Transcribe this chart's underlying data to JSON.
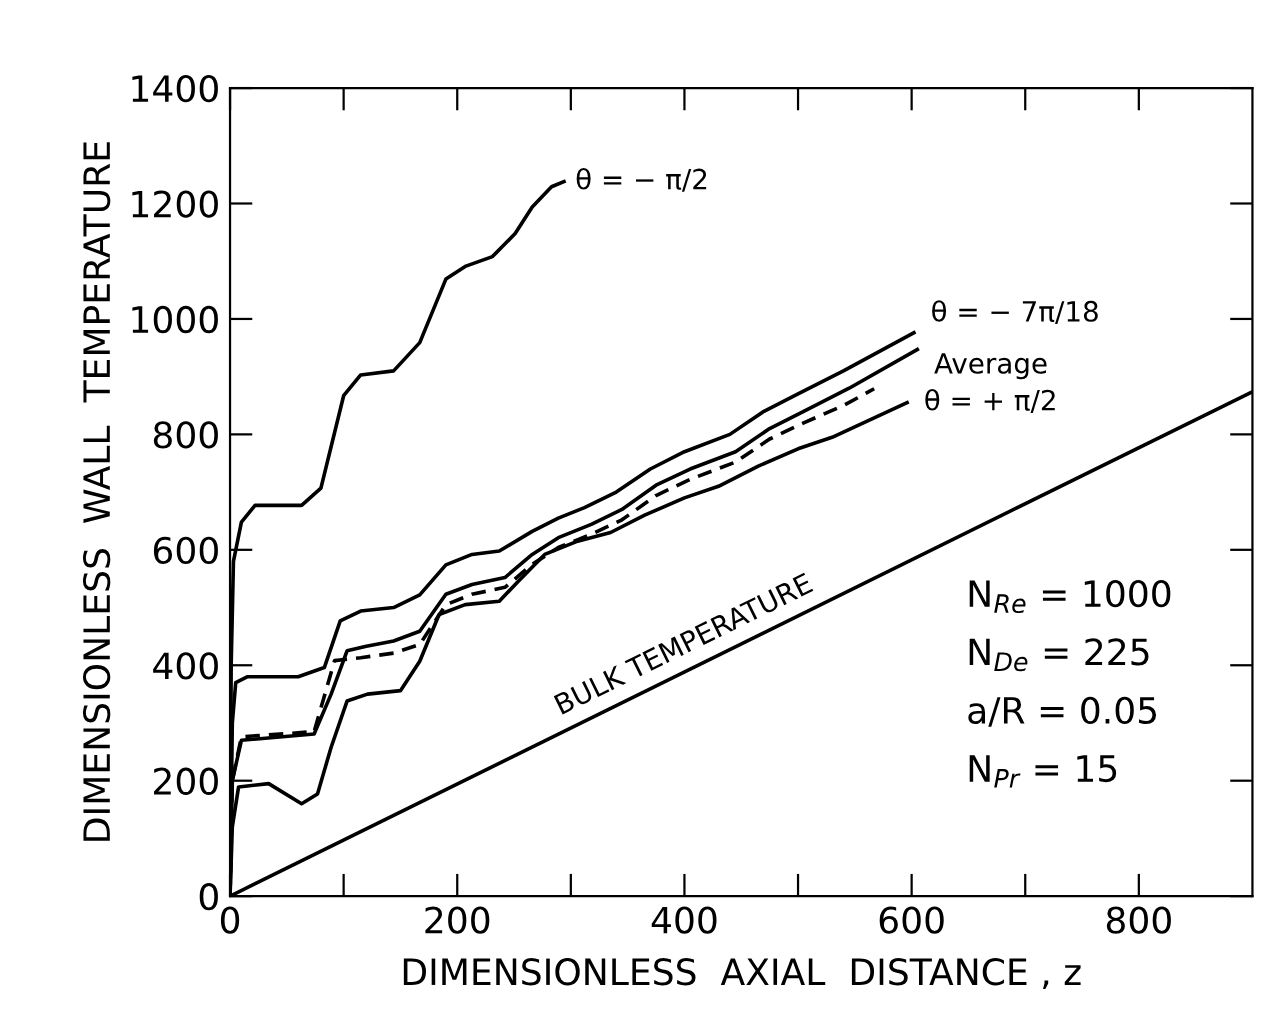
{
  "chart_data": {
    "type": "line",
    "xlabel": "DIMENSIONLESS  AXIAL  DISTANCE , z",
    "ylabel": "DIMENSIONLESS  WALL  TEMPERATURE",
    "xlim": [
      0,
      900
    ],
    "ylim": [
      0,
      1400
    ],
    "xticks": [
      0,
      {
        "value": 100,
        "label": null
      },
      200,
      {
        "value": 300,
        "label": null
      },
      400,
      {
        "value": 500,
        "label": null
      },
      600,
      {
        "value": 700,
        "label": null
      },
      800
    ],
    "yticks": [
      0,
      200,
      400,
      600,
      800,
      1000,
      1200,
      1400
    ],
    "grid": false,
    "legend": false,
    "marker": "none",
    "series": [
      {
        "name": "θ = − π/2",
        "color": "#000000",
        "line_style": "solid",
        "x": [
          0,
          1,
          3,
          10,
          22,
          63,
          80,
          100,
          115,
          144,
          167,
          190,
          207,
          231,
          251,
          266,
          283,
          294
        ],
        "values": [
          0,
          400,
          580,
          648,
          677,
          677,
          707,
          867,
          903,
          910,
          959,
          1069,
          1091,
          1108,
          1148,
          1194,
          1229,
          1238
        ]
      },
      {
        "name": "θ = − 7π/18",
        "color": "#000000",
        "line_style": "solid",
        "x": [
          0,
          2,
          5,
          15,
          60,
          83,
          97,
          115,
          144,
          167,
          190,
          213,
          237,
          266,
          289,
          312,
          340,
          370,
          400,
          440,
          470,
          500,
          540,
          602
        ],
        "values": [
          0,
          300,
          370,
          380,
          380,
          396,
          477,
          494,
          500,
          522,
          574,
          592,
          598,
          632,
          655,
          673,
          700,
          740,
          770,
          800,
          840,
          870,
          910,
          976
        ]
      },
      {
        "name": "Average",
        "color": "#000000",
        "line_style": "solid",
        "x": [
          0,
          2,
          10,
          74,
          89,
          103,
          120,
          144,
          167,
          190,
          213,
          242,
          266,
          289,
          318,
          345,
          375,
          405,
          445,
          475,
          505,
          545,
          605
        ],
        "values": [
          0,
          200,
          270,
          281,
          350,
          425,
          433,
          442,
          459,
          523,
          540,
          552,
          592,
          621,
          644,
          670,
          712,
          740,
          770,
          810,
          840,
          880,
          947
        ]
      },
      {
        "color": "#000000",
        "line_style": "dashed",
        "x": [
          0,
          2,
          10,
          74,
          92,
          115,
          144,
          167,
          190,
          213,
          242,
          266,
          289,
          318,
          345,
          375,
          405,
          445,
          475,
          505,
          540,
          567
        ],
        "values": [
          0,
          200,
          276,
          285,
          408,
          413,
          421,
          436,
          505,
          523,
          535,
          575,
          604,
          627,
          652,
          694,
          722,
          752,
          792,
          820,
          850,
          879
        ]
      },
      {
        "name": "θ = + π/2",
        "color": "#000000",
        "line_style": "solid",
        "x": [
          0,
          2,
          7.5,
          34,
          63,
          77,
          89,
          103,
          121,
          150,
          167,
          184,
          207,
          237,
          254,
          277,
          306,
          335,
          365,
          400,
          430,
          465,
          500,
          530,
          596
        ],
        "values": [
          0,
          120,
          189,
          195,
          160,
          177,
          258,
          338,
          350,
          356,
          407,
          488,
          505,
          511,
          546,
          592,
          615,
          630,
          660,
          690,
          710,
          745,
          775,
          795,
          855
        ]
      },
      {
        "name": "BULK TEMPERATURE",
        "color": "#000000",
        "line_style": "solid",
        "x": [
          0,
          900
        ],
        "values": [
          0,
          874
        ]
      }
    ],
    "annotations": [
      "N$_{Re}$ = 1000",
      "N$_{De}$ = 225",
      "a/R = 0.05",
      "N$_{Pr}$ = 15"
    ]
  }
}
